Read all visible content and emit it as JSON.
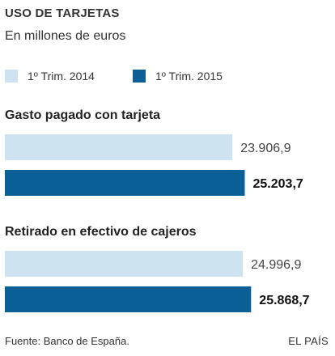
{
  "colors": {
    "series_2014": "#cde3ef",
    "series_2015": "#0b5f97",
    "text": "#222222"
  },
  "chart_data": {
    "type": "bar",
    "title": "USO DE TARJETAS",
    "subtitle": "En millones de euros",
    "categories": [
      "Gasto pagado con tarjeta",
      "Retirado en efectivo de cajeros"
    ],
    "series": [
      {
        "name": "1º Trim. 2014",
        "values": [
          23906.9,
          24996.9
        ],
        "labels": [
          "23.906,9",
          "24.996,9"
        ]
      },
      {
        "name": "1º Trim. 2015",
        "values": [
          25203.7,
          25868.7
        ],
        "labels": [
          "25.203,7",
          "25.868,7"
        ]
      }
    ],
    "orientation": "horizontal",
    "legend": "top-left",
    "grid": false
  },
  "footer": {
    "source": "Fuente: Banco de España.",
    "brand": "EL PAÍS"
  }
}
